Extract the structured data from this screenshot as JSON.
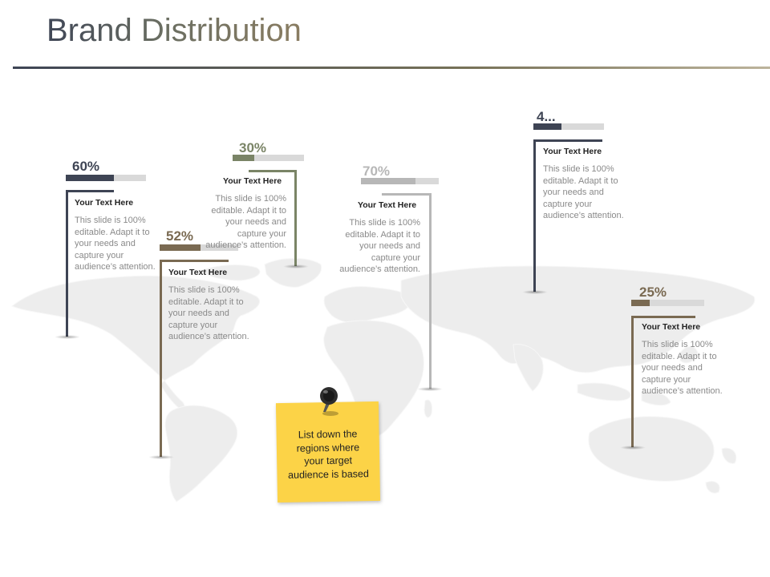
{
  "page": {
    "title": "Brand Distribution"
  },
  "flags": [
    {
      "pct": "60%",
      "level": 60,
      "color": "#3e4454",
      "heading": "Your Text Here",
      "body": "This slide is 100% editable. Adapt it to your needs and capture your audience’s attention."
    },
    {
      "pct": "52%",
      "level": 52,
      "color": "#7a6a52",
      "heading": "Your Text Here",
      "body": "This slide is 100% editable. Adapt it to your needs and capture your audience’s attention."
    },
    {
      "pct": "30%",
      "level": 30,
      "color": "#7a8466",
      "heading": "Your Text Here",
      "body": "This slide is 100% editable. Adapt it to your needs and capture your audience’s attention."
    },
    {
      "pct": "70%",
      "level": 70,
      "color": "#b7b7b7",
      "heading": "Your Text Here",
      "body": "This slide is 100% editable. Adapt it to your needs and capture your audience’s attention."
    },
    {
      "pct": "4...",
      "level": 40,
      "color": "#3e4454",
      "heading": "Your Text Here",
      "body": "This slide is 100% editable. Adapt it to your needs and capture your audience’s attention."
    },
    {
      "pct": "25%",
      "level": 25,
      "color": "#7a6a52",
      "heading": "Your Text Here",
      "body": "This slide is 100% editable. Adapt it to your needs and capture your audience’s attention."
    }
  ],
  "note": {
    "text": "List down the regions where your target audience is based",
    "color": "#fcd347"
  },
  "icons": {
    "pin": "push-pin-icon",
    "map": "world-map"
  }
}
